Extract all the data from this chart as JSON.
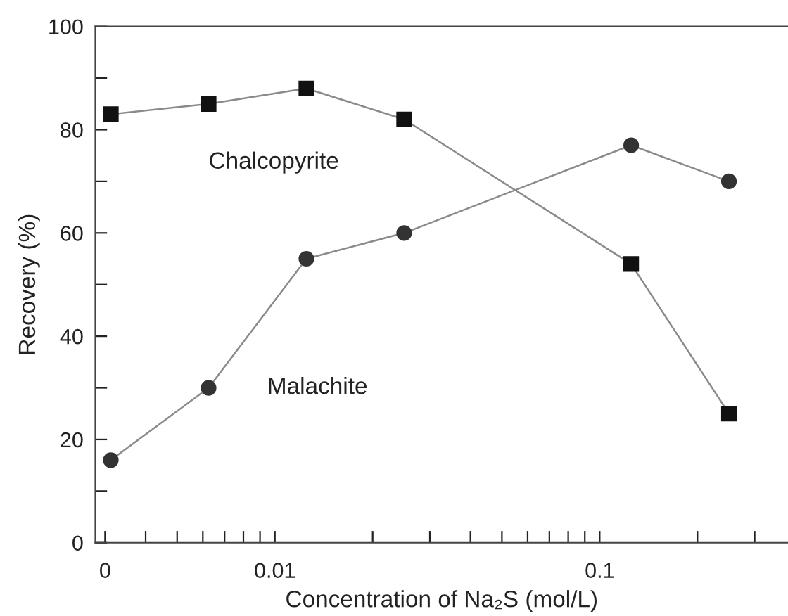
{
  "chart_data": {
    "type": "line",
    "xlabel": "Concentration of Na₂S (mol/L)",
    "ylabel": "Recovery (%)",
    "log": "x",
    "x": [
      0.003125,
      0.00625,
      0.0125,
      0.025,
      0.125,
      0.25
    ],
    "series": [
      {
        "name": "Chalcopyrite",
        "color": "#111111",
        "marker": "square",
        "values": [
          83,
          85,
          88,
          82,
          54,
          25
        ]
      },
      {
        "name": "Malachite",
        "color": "#333333",
        "marker": "circle",
        "values": [
          16,
          30,
          55,
          60,
          77,
          70
        ]
      }
    ],
    "xlim": [
      0.0028,
      0.38
    ],
    "xticks": [
      {
        "value": 0.003,
        "label": "0"
      },
      {
        "value": 0.004,
        "label": null
      },
      {
        "value": 0.005,
        "label": null
      },
      {
        "value": 0.006,
        "label": null
      },
      {
        "value": 0.007,
        "label": null
      },
      {
        "value": 0.008,
        "label": null
      },
      {
        "value": 0.009,
        "label": null
      },
      0.01,
      {
        "value": 0.02,
        "label": null
      },
      {
        "value": 0.03,
        "label": null
      },
      {
        "value": 0.04,
        "label": null
      },
      {
        "value": 0.05,
        "label": null
      },
      {
        "value": 0.06,
        "label": null
      },
      {
        "value": 0.07,
        "label": null
      },
      {
        "value": 0.08,
        "label": null
      },
      {
        "value": 0.09,
        "label": null
      },
      0.1,
      {
        "value": 0.2,
        "label": null
      },
      {
        "value": 0.3,
        "label": null
      }
    ],
    "ylim": [
      0,
      100
    ],
    "yticks": [
      0,
      {
        "value": 10,
        "label": null
      },
      20,
      {
        "value": 30,
        "label": null
      },
      40,
      {
        "value": 50,
        "label": null
      },
      60,
      {
        "value": 70,
        "label": null
      },
      80,
      {
        "value": 90,
        "label": null
      },
      100
    ],
    "line_style": "solid",
    "grid": false,
    "legend": false
  }
}
